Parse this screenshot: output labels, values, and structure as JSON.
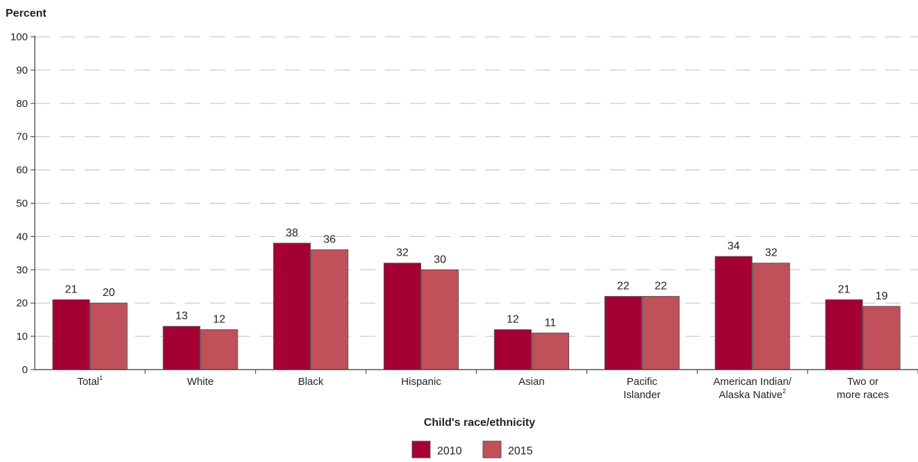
{
  "chart_data": {
    "type": "bar",
    "ylabel": "Percent",
    "xlabel": "Child's race/ethnicity",
    "ylim": [
      0,
      100
    ],
    "yticks": [
      0,
      10,
      20,
      30,
      40,
      50,
      60,
      70,
      80,
      90,
      100
    ],
    "grid": "horizontal dashed",
    "legend_position": "bottom-center",
    "categories": [
      {
        "lines": [
          "Total"
        ],
        "sup": "1"
      },
      {
        "lines": [
          "White"
        ],
        "sup": ""
      },
      {
        "lines": [
          "Black"
        ],
        "sup": ""
      },
      {
        "lines": [
          "Hispanic"
        ],
        "sup": ""
      },
      {
        "lines": [
          "Asian"
        ],
        "sup": ""
      },
      {
        "lines": [
          "Pacific",
          "Islander"
        ],
        "sup": ""
      },
      {
        "lines": [
          "American Indian/",
          "Alaska Native"
        ],
        "sup": "2"
      },
      {
        "lines": [
          "Two or",
          "more races"
        ],
        "sup": ""
      }
    ],
    "series": [
      {
        "name": "2010",
        "color": "#A50034",
        "values": [
          21,
          13,
          38,
          32,
          12,
          22,
          34,
          21
        ],
        "labels": [
          "21",
          "13",
          "38",
          "32",
          "12",
          "22",
          "34",
          "21"
        ]
      },
      {
        "name": "2015",
        "color": "#C0505A",
        "values": [
          20,
          12,
          36,
          30,
          11,
          22,
          32,
          19
        ],
        "labels": [
          "20",
          "12",
          "36",
          "30",
          "11",
          "22",
          "32",
          "19"
        ]
      }
    ]
  }
}
